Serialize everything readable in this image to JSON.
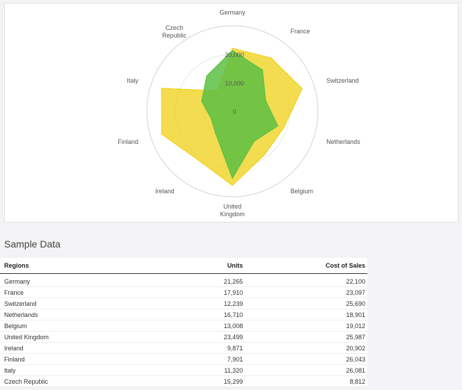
{
  "chart_data": {
    "type": "radar",
    "categories": [
      "Germany",
      "France",
      "Switzerland",
      "Netherlands",
      "Belgium",
      "United Kingdom",
      "Ireland",
      "Finland",
      "Italy",
      "Czech Republic"
    ],
    "radial_ticks": [
      "0",
      "10,000",
      "20,000"
    ],
    "radial_max": 30000,
    "series": [
      {
        "key": "units",
        "values": [
          21265,
          17910,
          12239,
          16710,
          13008,
          23499,
          9871,
          7901,
          11320,
          15299
        ],
        "color": "#5cbf43",
        "fill_opacity": 0.85
      },
      {
        "key": "cost_of_sales",
        "values": [
          22100,
          23097,
          25690,
          18901,
          19012,
          25987,
          20902,
          26043,
          26081,
          8812
        ],
        "color": "#f0d21e",
        "fill_opacity": 0.78
      }
    ]
  },
  "section": {
    "title": "Sample Data"
  },
  "table": {
    "headers": {
      "region": "Regions",
      "units": "Units",
      "cost": "Cost of Sales"
    },
    "rows": [
      {
        "region": "Germany",
        "units": "21,265",
        "cost": "22,100"
      },
      {
        "region": "France",
        "units": "17,910",
        "cost": "23,097"
      },
      {
        "region": "Switzerland",
        "units": "12,239",
        "cost": "25,690"
      },
      {
        "region": "Netherlands",
        "units": "16,710",
        "cost": "18,901"
      },
      {
        "region": "Belgium",
        "units": "13,008",
        "cost": "19,012"
      },
      {
        "region": "United Kingdom",
        "units": "23,499",
        "cost": "25,987"
      },
      {
        "region": "Ireland",
        "units": "9,871",
        "cost": "20,902"
      },
      {
        "region": "Finland",
        "units": "7,901",
        "cost": "26,043"
      },
      {
        "region": "Italy",
        "units": "11,320",
        "cost": "26,081"
      },
      {
        "region": "Czech Republic",
        "units": "15,299",
        "cost": "8,812"
      }
    ]
  }
}
